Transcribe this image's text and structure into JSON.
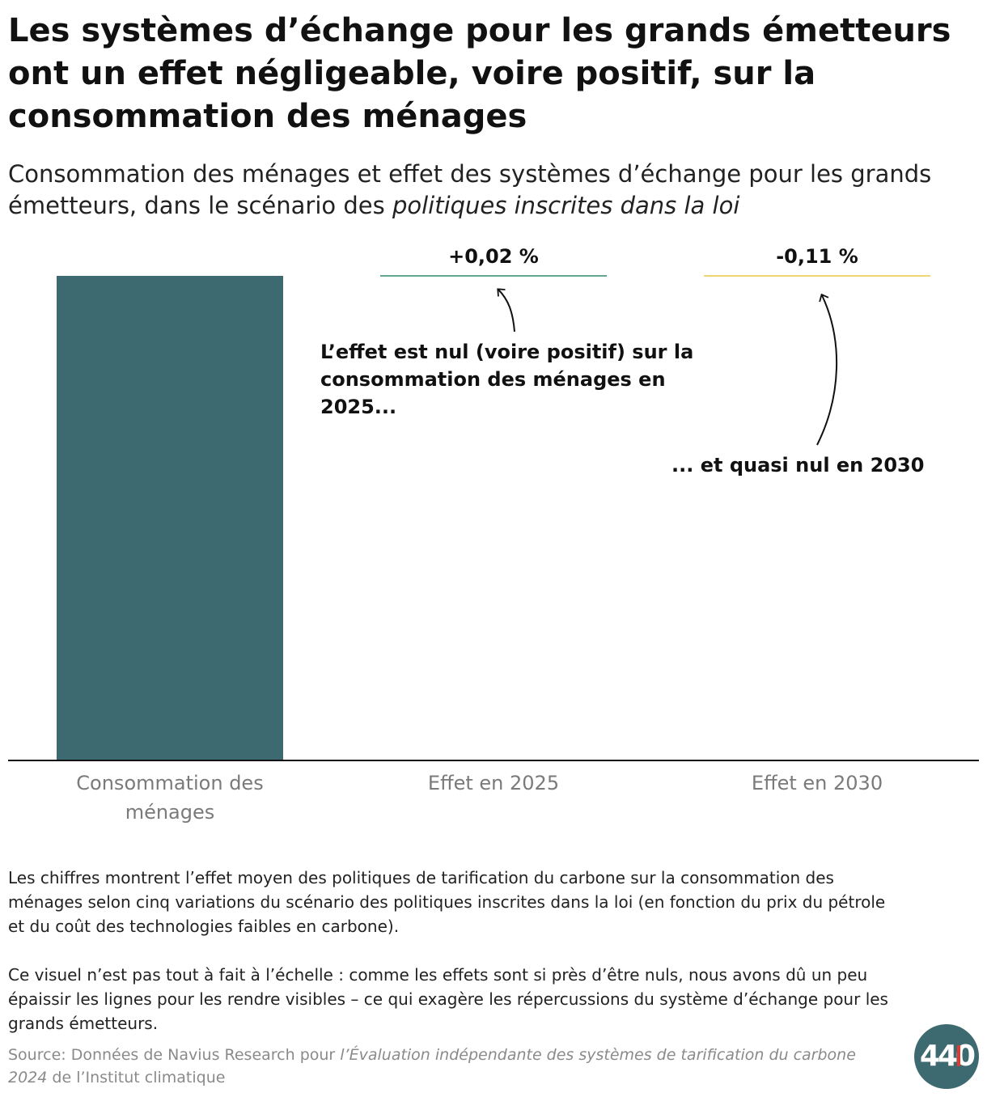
{
  "title": "Les systèmes d’échange pour les grands émetteurs ont un effet négligeable, voire positif, sur la consommation des ménages",
  "subtitle_main": "Consommation des ménages et effet des systèmes d’échange pour les grands émetteurs, dans le scénario des ",
  "subtitle_em": "politiques inscrites dans la loi",
  "chart_data": {
    "type": "bar",
    "categories": [
      "Consommation des ménages",
      "Effet en 2025",
      "Effet en 2030"
    ],
    "category_lines": [
      [
        "Consommation des",
        "ménages"
      ],
      [
        "Effet en 2025"
      ],
      [
        "Effet en 2030"
      ]
    ],
    "value_labels": [
      "",
      "+0,02 %",
      "-0,11 %"
    ],
    "values_percent": [
      100,
      0.02,
      -0.11
    ],
    "colors": [
      "#3d6a70",
      "#2f8a6a",
      "#e8c84a"
    ]
  },
  "annotations": {
    "a2025": "L’effet est nul (voire positif) sur la consommation des ménages en 2025...",
    "a2030": "... et quasi nul en 2030"
  },
  "notes": {
    "p1": "Les chiffres montrent l’effet moyen des politiques de tarification du carbone sur la consommation des ménages selon cinq variations du scénario des politiques inscrites dans la loi (en fonction du prix du pétrole et du coût des technologies faibles en carbone).",
    "p2": "Ce visuel n’est pas tout à fait à l’échelle : comme les effets sont si près d’être nuls, nous avons dû un peu épaissir les lignes pour les rendre visibles – ce qui exagère les répercussions du système d’échange pour les grands émetteurs."
  },
  "source": {
    "prefix": "Source: Données de Navius Research pour ",
    "em": "l’Évaluation indépendante des systèmes de tarification du carbone 2024",
    "suffix": " de l’Institut climatique"
  },
  "logo": {
    "text": "440",
    "icon": "down-arrow-icon",
    "bg": "#3d6a70",
    "accent": "#e03a2e"
  }
}
